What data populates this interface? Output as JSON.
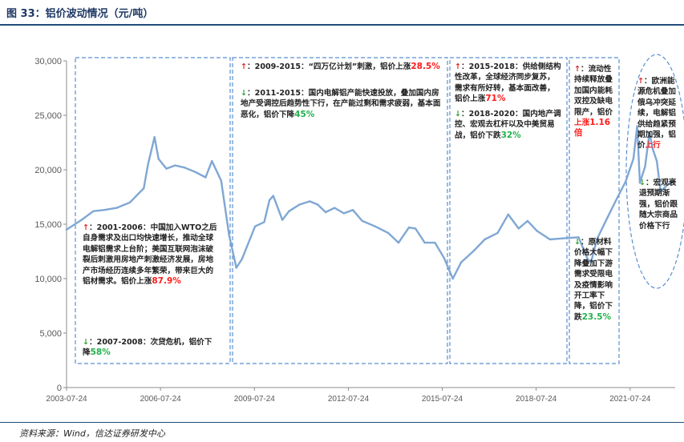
{
  "header": {
    "title": "图 33：铝价波动情况（元/吨）"
  },
  "source": "资料来源：Wind，信达证券研发中心",
  "colors": {
    "line": "#7fa7d4",
    "box": "#5b8fd0",
    "up": "#e02020",
    "down": "#2ca02c",
    "pct_red": "#ff1a1a",
    "pct_green": "#22b14c"
  },
  "chart_data": {
    "type": "line",
    "title": "",
    "xlabel": "",
    "ylabel": "",
    "x_tick_labels": [
      "2003-07-24",
      "2006-07-24",
      "2009-07-24",
      "2012-07-24",
      "2015-07-24",
      "2018-07-24",
      "2021-07-24"
    ],
    "y_tick_labels": [
      "0",
      "5,000",
      "10,000",
      "15,000",
      "20,000",
      "25,000",
      "30,000"
    ],
    "ylim": [
      0,
      30000
    ],
    "xlim": [
      "2003-07-24",
      "2023-01-01"
    ],
    "grid": false,
    "series": [
      {
        "name": "",
        "x": [
          "2003-07-24",
          "2004-01-15",
          "2004-06-01",
          "2004-10-01",
          "2005-03-01",
          "2005-08-01",
          "2006-01-10",
          "2006-03-01",
          "2006-05-15",
          "2006-07-01",
          "2006-10-01",
          "2007-01-10",
          "2007-05-01",
          "2007-09-01",
          "2008-01-01",
          "2008-03-15",
          "2008-07-01",
          "2008-10-01",
          "2008-12-25",
          "2009-03-01",
          "2009-05-01",
          "2009-08-01",
          "2009-11-15",
          "2010-01-15",
          "2010-03-01",
          "2010-06-15",
          "2010-09-01",
          "2011-01-01",
          "2011-05-01",
          "2011-08-01",
          "2011-11-01",
          "2012-02-15",
          "2012-06-01",
          "2012-09-15",
          "2013-01-01",
          "2013-06-01",
          "2013-11-01",
          "2014-03-01",
          "2014-07-01",
          "2014-09-15",
          "2015-01-01",
          "2015-05-01",
          "2015-08-15",
          "2015-11-25",
          "2016-03-01",
          "2016-08-01",
          "2016-12-01",
          "2017-05-01",
          "2017-09-01",
          "2018-01-01",
          "2018-04-15",
          "2018-08-01",
          "2019-01-01",
          "2019-06-01",
          "2019-12-01",
          "2020-03-15",
          "2020-04-25",
          "2020-07-01",
          "2020-11-01",
          "2021-03-01",
          "2021-06-01",
          "2021-09-01",
          "2021-10-15",
          "2021-11-15",
          "2022-01-15",
          "2022-03-07",
          "2022-04-15",
          "2022-06-01",
          "2022-07-15",
          "2022-10-01",
          "2022-12-15"
        ],
        "values": [
          14500,
          15400,
          16200,
          16300,
          16500,
          17000,
          18300,
          20500,
          23000,
          21000,
          20100,
          20400,
          20200,
          19800,
          19300,
          20800,
          19000,
          14000,
          11000,
          11800,
          13000,
          14800,
          15200,
          17200,
          17600,
          15400,
          16200,
          16800,
          17100,
          16800,
          16100,
          16500,
          16000,
          16300,
          15300,
          14800,
          14200,
          13300,
          14700,
          14600,
          13300,
          13300,
          11900,
          10000,
          11500,
          12600,
          13600,
          14200,
          15900,
          14600,
          15300,
          14400,
          13600,
          13700,
          13800,
          11800,
          11500,
          13600,
          15600,
          17500,
          18900,
          21000,
          24000,
          18800,
          20300,
          23400,
          21900,
          20800,
          18000,
          18600,
          19000
        ]
      }
    ]
  },
  "annotations": {
    "a1": {
      "arrow": "↑",
      "line1_rest": "：2001-2006：中国加入WTO之后自身需求及出口均快速增长，推动全球电解铝需求上台阶；美国互联网泡沫破裂后刺激用房地产刺激经济发展，房地产市场经历连续多年繁荣，带来巨大的铝材需求。铝价上涨",
      "pct": "87.9%"
    },
    "a2": {
      "arrow": "↓",
      "text": "：2007-2008：次贷危机，铝价下降",
      "pct": "58%"
    },
    "a3": {
      "arrow": "↑",
      "text": "：2009-2015：“四万亿计划”刺激，铝价上涨",
      "pct": "28.5%"
    },
    "a4": {
      "arrow": "↓",
      "text": "：2011-2015：国内电解铝产能快速投放，叠加国内房地产受调控后趋势性下行，在产能过剩和需求疲弱，基本面恶化，铝价下降",
      "pct": "45%"
    },
    "a5": {
      "arrow": "↑",
      "text": "：2015-2018：供给侧结构性改革，全球经济同步复苏，需求有所好转，基本面改善，铝价上涨",
      "pct": "71%"
    },
    "a6": {
      "arrow": "↓",
      "text": "：2018-2020：国内地产调控、宏观去杠杆以及中美贸易战，铝价下跌",
      "pct": "32%"
    },
    "a7": {
      "arrow": "↑",
      "text": "：流动性持续释放叠加国内能耗双控及缺电限产，铝价",
      "red_text": "上涨",
      "pct": "1.16倍"
    },
    "a8": {
      "arrow": "↓",
      "text": "：原材料价格大幅下降叠加下游需求受限电及疫情影响开工率下降，铝价下跌",
      "pct": "23.5%"
    },
    "a9": {
      "arrow": "↑",
      "text": "：欧洲能源危机叠加俄乌冲突延续，电解铝供给趋紧预期加强，铝价",
      "red_text": "上行"
    },
    "a10": {
      "arrow": "↓",
      "text": "：宏观衰退预期渐强，铝价跟随大宗商品价格下行"
    }
  }
}
